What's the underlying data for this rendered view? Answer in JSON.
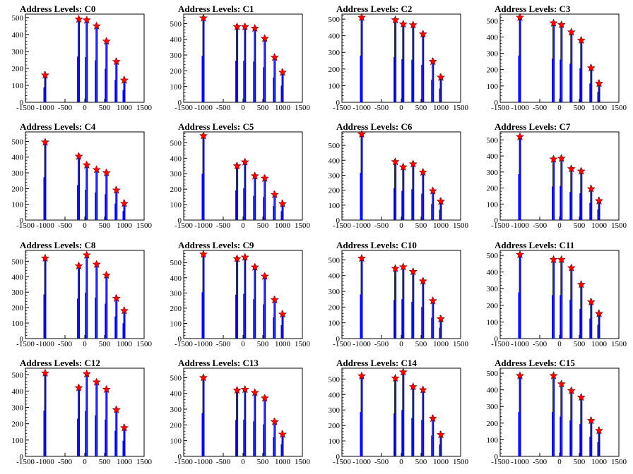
{
  "chart_data": {
    "type": "bar",
    "x_ticks": [
      -1500,
      -1000,
      -500,
      0,
      500,
      1000,
      1500
    ],
    "xlim": [
      -1500,
      1500
    ],
    "marker": "red-star",
    "bar_color": "#0000ff",
    "marker_color": "#ff0000",
    "panels": [
      {
        "title": "Address Levels: C0",
        "ylim": [
          0,
          520
        ],
        "yticks": [
          0,
          100,
          200,
          300,
          400,
          500
        ],
        "x": [
          -1000,
          -150,
          50,
          300,
          550,
          800,
          1000
        ],
        "values": [
          160,
          490,
          485,
          450,
          360,
          240,
          130
        ]
      },
      {
        "title": "Address Levels: C1",
        "ylim": [
          0,
          560
        ],
        "yticks": [
          0,
          100,
          200,
          300,
          400,
          500
        ],
        "x": [
          -1000,
          -150,
          50,
          300,
          550,
          800,
          1000
        ],
        "values": [
          535,
          480,
          480,
          470,
          405,
          285,
          190
        ]
      },
      {
        "title": "Address Levels: C2",
        "ylim": [
          0,
          530
        ],
        "yticks": [
          0,
          100,
          200,
          300,
          400,
          500
        ],
        "x": [
          -1000,
          -150,
          50,
          300,
          550,
          800,
          1000
        ],
        "values": [
          510,
          495,
          470,
          465,
          410,
          245,
          150
        ]
      },
      {
        "title": "Address Levels: C3",
        "ylim": [
          0,
          540
        ],
        "yticks": [
          0,
          100,
          200,
          300,
          400,
          500
        ],
        "x": [
          -1000,
          -150,
          50,
          300,
          550,
          800,
          1000
        ],
        "values": [
          520,
          485,
          475,
          430,
          380,
          210,
          115
        ]
      },
      {
        "title": "Address Levels: C4",
        "ylim": [
          0,
          560
        ],
        "yticks": [
          0,
          100,
          200,
          300,
          400,
          500
        ],
        "x": [
          -1000,
          -150,
          50,
          300,
          550,
          800,
          1000
        ],
        "values": [
          495,
          405,
          350,
          320,
          300,
          190,
          105
        ]
      },
      {
        "title": "Address Levels: C5",
        "ylim": [
          0,
          570
        ],
        "yticks": [
          0,
          100,
          200,
          300,
          400,
          500
        ],
        "x": [
          -1000,
          -150,
          50,
          300,
          550,
          800,
          1000
        ],
        "values": [
          545,
          350,
          375,
          285,
          270,
          165,
          105
        ]
      },
      {
        "title": "Address Levels: C6",
        "ylim": [
          0,
          590
        ],
        "yticks": [
          0,
          100,
          200,
          300,
          400,
          500
        ],
        "x": [
          -1000,
          -150,
          50,
          300,
          550,
          800,
          1000
        ],
        "values": [
          575,
          390,
          355,
          375,
          320,
          195,
          125
        ]
      },
      {
        "title": "Address Levels: C7",
        "ylim": [
          0,
          550
        ],
        "yticks": [
          0,
          100,
          200,
          300,
          400,
          500
        ],
        "x": [
          -1000,
          -150,
          50,
          300,
          550,
          800,
          1000
        ],
        "values": [
          520,
          380,
          385,
          320,
          305,
          195,
          120
        ]
      },
      {
        "title": "Address Levels: C8",
        "ylim": [
          0,
          570
        ],
        "yticks": [
          0,
          100,
          200,
          300,
          400,
          500
        ],
        "x": [
          -1000,
          -150,
          50,
          300,
          550,
          800,
          1000
        ],
        "values": [
          520,
          470,
          540,
          480,
          410,
          260,
          180
        ]
      },
      {
        "title": "Address Levels: C9",
        "ylim": [
          0,
          580
        ],
        "yticks": [
          0,
          100,
          200,
          300,
          400,
          500
        ],
        "x": [
          -1000,
          -150,
          50,
          300,
          550,
          800,
          1000
        ],
        "values": [
          555,
          525,
          535,
          470,
          410,
          255,
          160
        ]
      },
      {
        "title": "Address Levels: C10",
        "ylim": [
          0,
          560
        ],
        "yticks": [
          0,
          100,
          200,
          300,
          400,
          500
        ],
        "x": [
          -1000,
          -150,
          50,
          300,
          550,
          800,
          1000
        ],
        "values": [
          510,
          445,
          455,
          425,
          365,
          240,
          125
        ]
      },
      {
        "title": "Address Levels: C11",
        "ylim": [
          0,
          530
        ],
        "yticks": [
          0,
          100,
          200,
          300,
          400,
          500
        ],
        "x": [
          -1000,
          -150,
          50,
          300,
          550,
          800,
          1000
        ],
        "values": [
          505,
          475,
          475,
          425,
          325,
          220,
          150
        ]
      },
      {
        "title": "Address Levels: C12",
        "ylim": [
          0,
          540
        ],
        "yticks": [
          0,
          100,
          200,
          300,
          400,
          500
        ],
        "x": [
          -1000,
          -150,
          50,
          300,
          550,
          800,
          1000
        ],
        "values": [
          510,
          420,
          505,
          455,
          410,
          285,
          175
        ]
      },
      {
        "title": "Address Levels: C13",
        "ylim": [
          0,
          560
        ],
        "yticks": [
          0,
          100,
          200,
          300,
          400,
          500
        ],
        "x": [
          -1000,
          -150,
          50,
          300,
          550,
          800,
          1000
        ],
        "values": [
          500,
          420,
          425,
          405,
          370,
          220,
          140
        ]
      },
      {
        "title": "Address Levels: C14",
        "ylim": [
          0,
          570
        ],
        "yticks": [
          0,
          100,
          200,
          300,
          400,
          500
        ],
        "x": [
          -1000,
          -150,
          50,
          300,
          550,
          800,
          1000
        ],
        "values": [
          520,
          505,
          545,
          450,
          430,
          245,
          140
        ]
      },
      {
        "title": "Address Levels: C15",
        "ylim": [
          0,
          530
        ],
        "yticks": [
          0,
          100,
          200,
          300,
          400,
          500
        ],
        "x": [
          -1000,
          -150,
          50,
          300,
          550,
          800,
          1000
        ],
        "values": [
          485,
          485,
          435,
          395,
          355,
          215,
          155
        ]
      }
    ]
  }
}
